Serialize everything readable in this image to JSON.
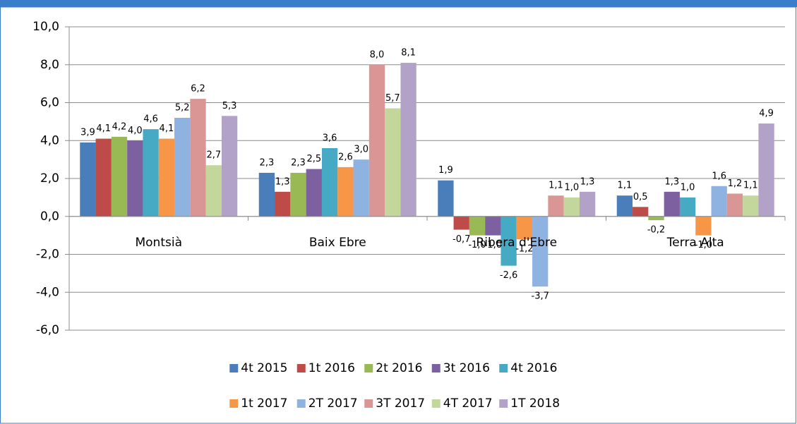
{
  "chart_data": {
    "type": "bar",
    "categories": [
      "Montsià",
      "Baix Ebre",
      "Ribera d'Ebre",
      "Terra Alta"
    ],
    "series": [
      {
        "name": "4t 2015",
        "color": "#4a7ebb",
        "values": [
          3.9,
          2.3,
          1.9,
          1.1
        ],
        "value_labels": [
          "3,9",
          "2,3",
          "1,9",
          "1,1"
        ]
      },
      {
        "name": "1t 2016",
        "color": "#be4b48",
        "values": [
          4.1,
          1.3,
          -0.7,
          0.5
        ],
        "value_labels": [
          "4,1",
          "1,3",
          "-0,7",
          "0,5"
        ]
      },
      {
        "name": "2t 2016",
        "color": "#98b954",
        "values": [
          4.2,
          2.3,
          -1.0,
          -0.2
        ],
        "value_labels": [
          "4,2",
          "2,3",
          "-1,0",
          "-0,2"
        ]
      },
      {
        "name": "3t 2016",
        "color": "#7d60a0",
        "values": [
          4.0,
          2.5,
          -1.0,
          1.3
        ],
        "value_labels": [
          "4,0",
          "2,5",
          "-1,0",
          "1,3"
        ]
      },
      {
        "name": "4t 2016",
        "color": "#46aac5",
        "values": [
          4.6,
          3.6,
          -2.6,
          1.0
        ],
        "value_labels": [
          "4,6",
          "3,6",
          "-2,6",
          "1,0"
        ]
      },
      {
        "name": "1t 2017",
        "color": "#f79646",
        "values": [
          4.1,
          2.6,
          -1.2,
          -1.0
        ],
        "value_labels": [
          "4,1",
          "2,6",
          "-1,2",
          "-1,0"
        ]
      },
      {
        "name": "2T 2017",
        "color": "#8fb3e0",
        "values": [
          5.2,
          3.0,
          -3.7,
          1.6
        ],
        "value_labels": [
          "5,2",
          "3,0",
          "-3,7",
          "1,6"
        ]
      },
      {
        "name": "3T 2017",
        "color": "#d99694",
        "values": [
          6.2,
          8.0,
          1.1,
          1.2
        ],
        "value_labels": [
          "6,2",
          "8,0",
          "1,1",
          "1,2"
        ]
      },
      {
        "name": "4T 2017",
        "color": "#c3d69b",
        "values": [
          2.7,
          5.7,
          1.0,
          1.1
        ],
        "value_labels": [
          "2,7",
          "5,7",
          "1,0",
          "1,1"
        ]
      },
      {
        "name": "1T 2018",
        "color": "#b3a2c7",
        "values": [
          5.3,
          8.1,
          1.3,
          4.9
        ],
        "value_labels": [
          "5,3",
          "8,1",
          "1,3",
          "4,9"
        ]
      }
    ],
    "ylim": [
      -6,
      10
    ],
    "yticks": [
      {
        "value": -6,
        "label": "-6,0"
      },
      {
        "value": -4,
        "label": "-4,0"
      },
      {
        "value": -2,
        "label": "-2,0"
      },
      {
        "value": 0,
        "label": "0,0"
      },
      {
        "value": 2,
        "label": "2,0"
      },
      {
        "value": 4,
        "label": "4,0"
      },
      {
        "value": 6,
        "label": "6,0"
      },
      {
        "value": 8,
        "label": "8,0"
      },
      {
        "value": 10,
        "label": "10,0"
      }
    ],
    "grid": true,
    "legend": "bottom"
  }
}
